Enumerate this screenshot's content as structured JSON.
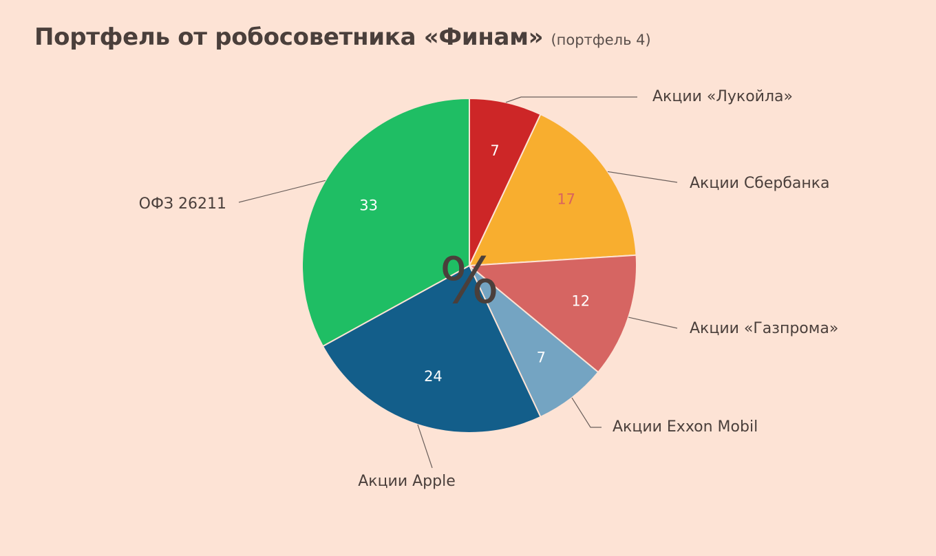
{
  "header": {
    "title": "Портфель от робосоветника «Финам»",
    "subtitle": "(портфель 4)"
  },
  "chart_data": {
    "type": "pie",
    "unit": "%",
    "center_label": "%",
    "slices": [
      {
        "label": "Акции «Лукойла»",
        "value": 7,
        "color": "#CD2627",
        "value_color": "#FFFFFF"
      },
      {
        "label": "Акции Сбербанка",
        "value": 17,
        "color": "#F8AE2F",
        "value_color": "#D8635E"
      },
      {
        "label": "Акции «Газпрома»",
        "value": 12,
        "color": "#D66562",
        "value_color": "#FFFFFF"
      },
      {
        "label": "Акции Exxon Mobil",
        "value": 7,
        "color": "#74A4C2",
        "value_color": "#FFFFFF"
      },
      {
        "label": "Акции Apple",
        "value": 24,
        "color": "#135E8A",
        "value_color": "#FFFFFF"
      },
      {
        "label": "ОФЗ 26211",
        "value": 33,
        "color": "#1FBE64",
        "value_color": "#FFFFFF"
      }
    ]
  }
}
